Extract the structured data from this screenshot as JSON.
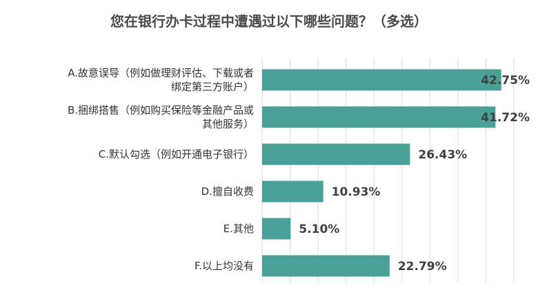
{
  "chart_data": {
    "type": "bar",
    "orientation": "horizontal",
    "title": "您在银行办卡过程中遭遇过以下哪些问题？（多选）",
    "categories": [
      [
        "A.故意误导（例如做理财评估、下载或者",
        "绑定第三方账户）"
      ],
      [
        "B.捆绑搭售（例如购买保险等金融产品或",
        "其他服务）"
      ],
      [
        "C.默认勾选（例如开通电子银行）"
      ],
      [
        "D.擅自收费"
      ],
      [
        "E.其他"
      ],
      [
        "F.以上均没有"
      ]
    ],
    "values": [
      42.75,
      41.72,
      26.43,
      10.93,
      5.1,
      22.79
    ],
    "value_labels": [
      "42.75%",
      "41.72%",
      "26.43%",
      "10.93%",
      "5.10%",
      "22.79%"
    ],
    "xlim": [
      0,
      45
    ],
    "grid": true,
    "colors": {
      "bar": "#4aa096",
      "grid": "#d9d9d9",
      "title": "#4a4a4a"
    }
  }
}
